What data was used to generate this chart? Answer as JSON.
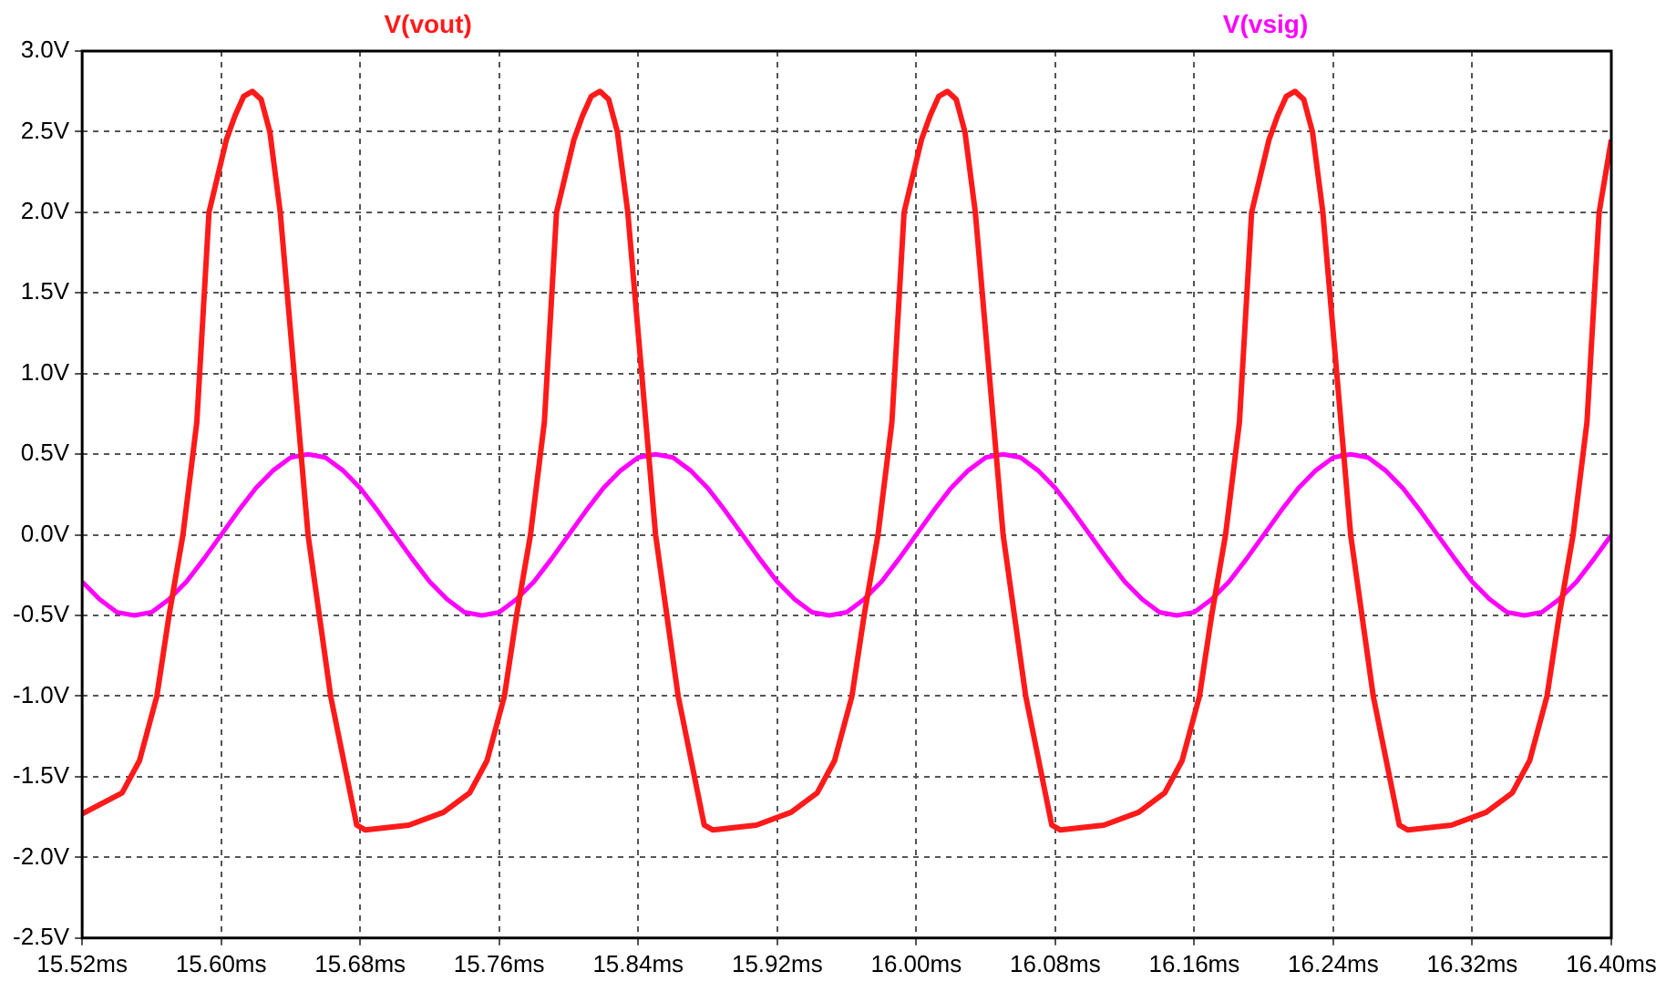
{
  "chart_data": {
    "type": "line",
    "legend": "top",
    "grid": true,
    "marker": "none",
    "line_style": "solid",
    "xlim": [
      15.52,
      16.4
    ],
    "ylim": [
      -2.5,
      3.0
    ],
    "xticks": [
      {
        "value": 15.52,
        "label": "15.52ms"
      },
      {
        "value": 15.6,
        "label": "15.60ms"
      },
      {
        "value": 15.68,
        "label": "15.68ms"
      },
      {
        "value": 15.76,
        "label": "15.76ms"
      },
      {
        "value": 15.84,
        "label": "15.84ms"
      },
      {
        "value": 15.92,
        "label": "15.92ms"
      },
      {
        "value": 16.0,
        "label": "16.00ms"
      },
      {
        "value": 16.08,
        "label": "16.08ms"
      },
      {
        "value": 16.16,
        "label": "16.16ms"
      },
      {
        "value": 16.24,
        "label": "16.24ms"
      },
      {
        "value": 16.32,
        "label": "16.32ms"
      },
      {
        "value": 16.4,
        "label": "16.40ms"
      }
    ],
    "yticks": [
      {
        "value": 3.0,
        "label": "3.0V"
      },
      {
        "value": 2.5,
        "label": "2.5V"
      },
      {
        "value": 2.0,
        "label": "2.0V"
      },
      {
        "value": 1.5,
        "label": "1.5V"
      },
      {
        "value": 1.0,
        "label": "1.0V"
      },
      {
        "value": 0.5,
        "label": "0.5V"
      },
      {
        "value": 0,
        "label": "0.0V"
      },
      {
        "value": -0.5,
        "label": "-0.5V"
      },
      {
        "value": -1.0,
        "label": "-1.0V"
      },
      {
        "value": -1.5,
        "label": "-1.5V"
      },
      {
        "value": -2.0,
        "label": "-2.0V"
      },
      {
        "value": -2.5,
        "label": "-2.5V"
      }
    ],
    "series": [
      {
        "name": "V(vout)",
        "color": "#ff1a1a",
        "x": [
          15.52,
          15.543,
          15.553,
          15.563,
          15.57,
          15.578,
          15.586,
          15.593,
          15.603,
          15.608,
          15.613,
          15.618,
          15.623,
          15.628,
          15.634,
          15.642,
          15.65,
          15.663,
          15.678,
          15.683,
          15.708,
          15.728,
          15.743,
          15.753,
          15.763,
          15.77,
          15.778,
          15.786,
          15.793,
          15.803,
          15.808,
          15.813,
          15.818,
          15.823,
          15.828,
          15.834,
          15.842,
          15.85,
          15.863,
          15.878,
          15.883,
          15.908,
          15.928,
          15.943,
          15.953,
          15.963,
          15.97,
          15.978,
          15.986,
          15.993,
          16.003,
          16.008,
          16.013,
          16.018,
          16.023,
          16.028,
          16.034,
          16.042,
          16.05,
          16.063,
          16.078,
          16.083,
          16.108,
          16.128,
          16.143,
          16.153,
          16.163,
          16.17,
          16.178,
          16.186,
          16.193,
          16.203,
          16.208,
          16.213,
          16.218,
          16.223,
          16.228,
          16.234,
          16.242,
          16.25,
          16.263,
          16.278,
          16.283,
          16.308,
          16.328,
          16.343,
          16.353,
          16.363,
          16.37,
          16.378,
          16.386,
          16.393,
          16.4
        ],
        "values": [
          -1.73,
          -1.6,
          -1.4,
          -1.0,
          -0.5,
          0,
          0.7,
          2.0,
          2.45,
          2.6,
          2.72,
          2.75,
          2.7,
          2.5,
          2.0,
          1.0,
          0,
          -1.0,
          -1.8,
          -1.83,
          -1.8,
          -1.72,
          -1.6,
          -1.4,
          -1.0,
          -0.5,
          0,
          0.7,
          2.0,
          2.45,
          2.6,
          2.72,
          2.75,
          2.7,
          2.5,
          2.0,
          1.0,
          0,
          -1.0,
          -1.8,
          -1.83,
          -1.8,
          -1.72,
          -1.6,
          -1.4,
          -1.0,
          -0.5,
          0,
          0.7,
          2.0,
          2.45,
          2.6,
          2.72,
          2.75,
          2.7,
          2.5,
          2.0,
          1.0,
          0,
          -1.0,
          -1.8,
          -1.83,
          -1.8,
          -1.72,
          -1.6,
          -1.4,
          -1.0,
          -0.5,
          0,
          0.7,
          2.0,
          2.45,
          2.6,
          2.72,
          2.75,
          2.7,
          2.5,
          2.0,
          1.0,
          0,
          -1.0,
          -1.8,
          -1.83,
          -1.8,
          -1.72,
          -1.6,
          -1.4,
          -1.0,
          -0.5,
          0,
          0.7,
          2.0,
          2.45
        ]
      },
      {
        "name": "V(vsig)",
        "color": "#ff00ff",
        "x": [
          15.52,
          15.53,
          15.54,
          15.55,
          15.56,
          15.57,
          15.58,
          15.59,
          15.6,
          15.61,
          15.62,
          15.63,
          15.64,
          15.65,
          15.66,
          15.67,
          15.68,
          15.69,
          15.7,
          15.71,
          15.72,
          15.73,
          15.74,
          15.75,
          15.76,
          15.77,
          15.78,
          15.79,
          15.8,
          15.81,
          15.82,
          15.83,
          15.84,
          15.85,
          15.86,
          15.87,
          15.88,
          15.89,
          15.9,
          15.91,
          15.92,
          15.93,
          15.94,
          15.95,
          15.96,
          15.97,
          15.98,
          15.99,
          16.0,
          16.01,
          16.02,
          16.03,
          16.04,
          16.05,
          16.06,
          16.07,
          16.08,
          16.09,
          16.1,
          16.11,
          16.12,
          16.13,
          16.14,
          16.15,
          16.16,
          16.17,
          16.18,
          16.19,
          16.2,
          16.21,
          16.22,
          16.23,
          16.24,
          16.25,
          16.26,
          16.27,
          16.28,
          16.29,
          16.3,
          16.31,
          16.32,
          16.33,
          16.34,
          16.35,
          16.36,
          16.37,
          16.38,
          16.39,
          16.4
        ],
        "values": [
          -0.29,
          -0.4,
          -0.48,
          -0.5,
          -0.48,
          -0.4,
          -0.29,
          -0.15,
          0,
          0.15,
          0.29,
          0.4,
          0.48,
          0.5,
          0.48,
          0.4,
          0.29,
          0.15,
          0,
          -0.15,
          -0.29,
          -0.4,
          -0.48,
          -0.5,
          -0.48,
          -0.4,
          -0.29,
          -0.15,
          0,
          0.15,
          0.29,
          0.4,
          0.48,
          0.5,
          0.48,
          0.4,
          0.29,
          0.15,
          0,
          -0.15,
          -0.29,
          -0.4,
          -0.48,
          -0.5,
          -0.48,
          -0.4,
          -0.29,
          -0.15,
          0,
          0.15,
          0.29,
          0.4,
          0.48,
          0.5,
          0.48,
          0.4,
          0.29,
          0.15,
          0,
          -0.15,
          -0.29,
          -0.4,
          -0.48,
          -0.5,
          -0.48,
          -0.4,
          -0.29,
          -0.15,
          0,
          0.15,
          0.29,
          0.4,
          0.48,
          0.5,
          0.48,
          0.4,
          0.29,
          0.15,
          0,
          -0.15,
          -0.29,
          -0.4,
          -0.48,
          -0.5,
          -0.48,
          -0.4,
          -0.29,
          -0.15,
          0
        ]
      }
    ]
  }
}
